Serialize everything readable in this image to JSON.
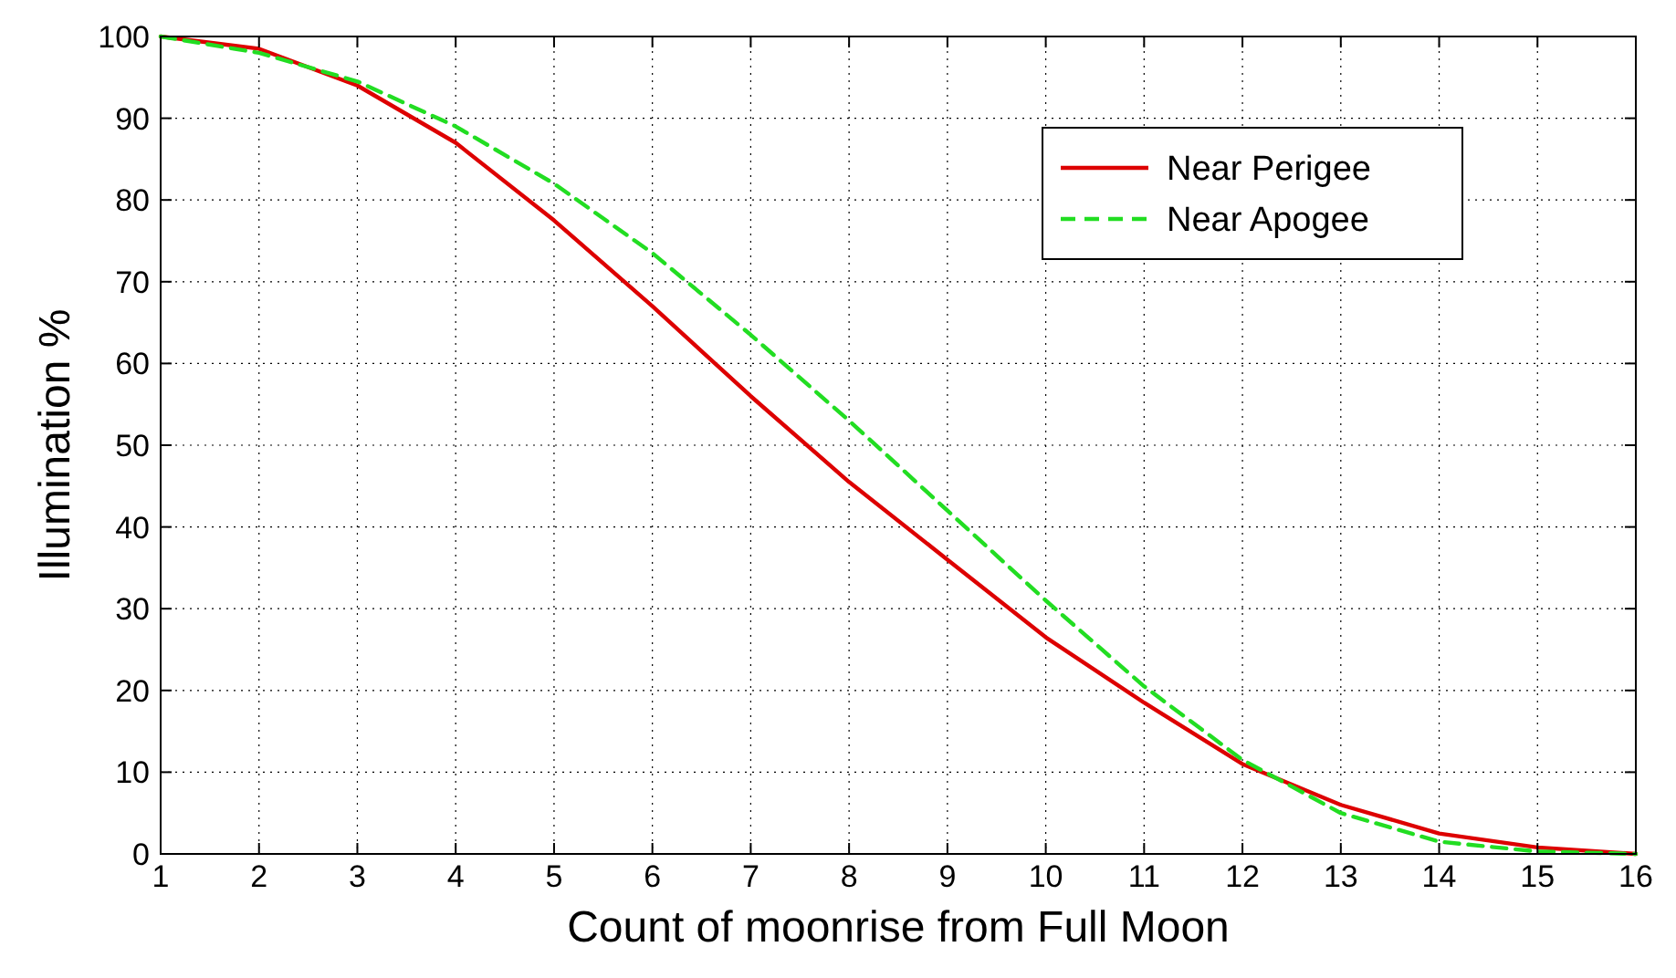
{
  "chart_data": {
    "type": "line",
    "xlabel": "Count of moonrise from Full Moon",
    "ylabel": "Illumination %",
    "x": [
      1,
      2,
      3,
      4,
      5,
      6,
      7,
      8,
      9,
      10,
      11,
      12,
      13,
      14,
      15,
      16
    ],
    "xlim": [
      1,
      16
    ],
    "xticks": [
      1,
      2,
      3,
      4,
      5,
      6,
      7,
      8,
      9,
      10,
      11,
      12,
      13,
      14,
      15,
      16
    ],
    "ylim": [
      0,
      100
    ],
    "yticks": [
      0,
      10,
      20,
      30,
      40,
      50,
      60,
      70,
      80,
      90,
      100
    ],
    "grid": true,
    "legend": "top right",
    "marker": "none",
    "series": [
      {
        "name": "Near Perigee",
        "color": "#dd0000",
        "line_style": "solid",
        "values": [
          100,
          98.5,
          94,
          87,
          77.5,
          67,
          56,
          45.5,
          36,
          26.5,
          18.5,
          11,
          6,
          2.5,
          0.8,
          0
        ]
      },
      {
        "name": "Near Apogee",
        "color": "#22dd22",
        "line_style": "dashed",
        "values": [
          100,
          98,
          94.5,
          89,
          82,
          73.5,
          63.5,
          53,
          42,
          31,
          20.5,
          11.5,
          5,
          1.5,
          0.3,
          0
        ]
      }
    ]
  }
}
